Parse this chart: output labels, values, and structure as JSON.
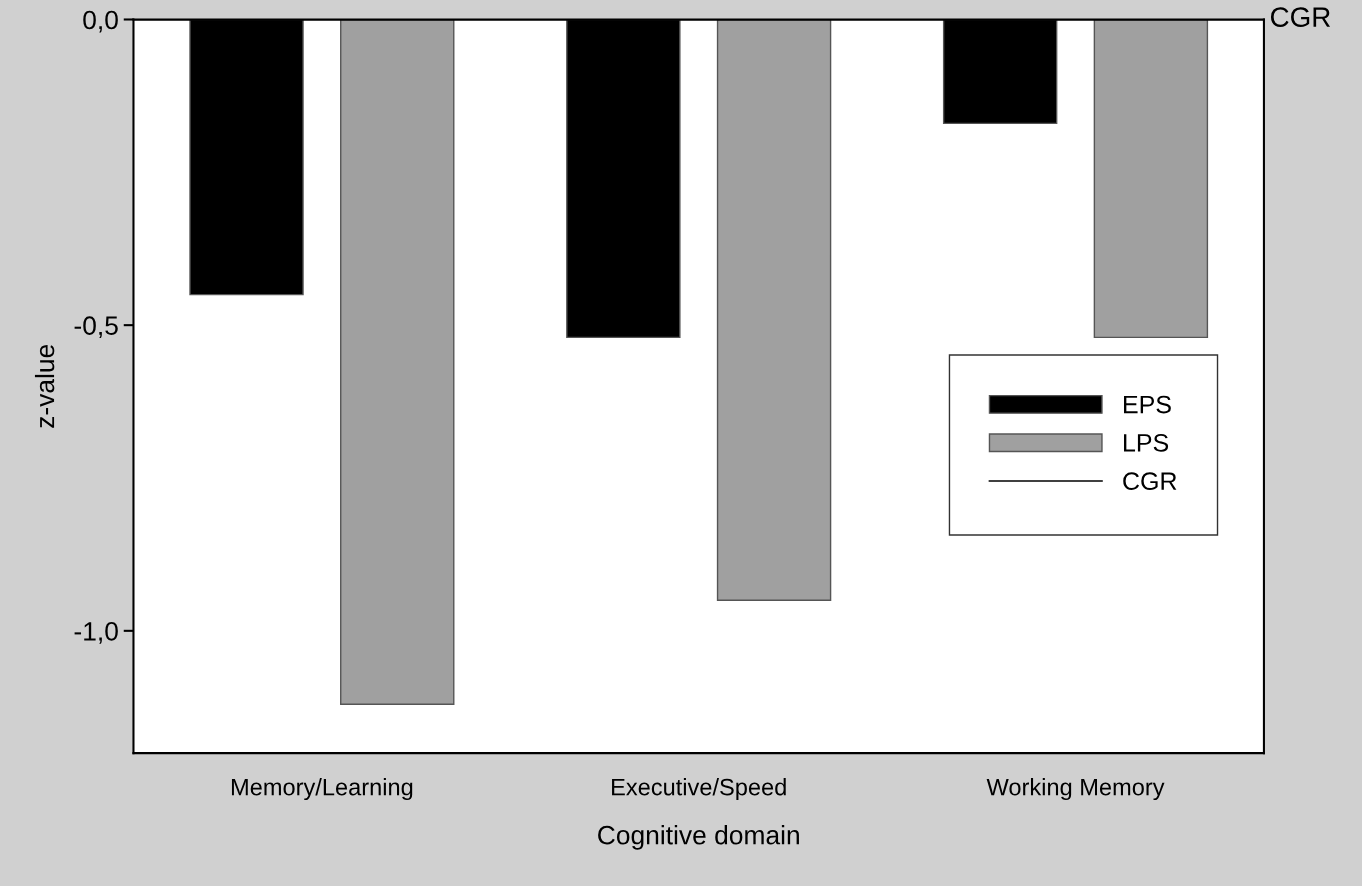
{
  "chart_data": {
    "type": "bar",
    "xlabel": "Cognitive domain",
    "ylabel": "z-value",
    "categories": [
      "Memory/Learning",
      "Executive/Speed",
      "Working Memory"
    ],
    "series": [
      {
        "name": "EPS",
        "color": "#000000",
        "values": [
          -0.45,
          -0.52,
          -0.17
        ]
      },
      {
        "name": "LPS",
        "color": "#a0a0a0",
        "values": [
          -1.12,
          -0.95,
          -0.52
        ]
      }
    ],
    "ylim": [
      -1.2,
      0
    ],
    "yticks": [
      {
        "value": 0,
        "label": "0,0"
      },
      {
        "value": -0.5,
        "label": "-0,5"
      },
      {
        "value": -1.0,
        "label": "-1,0"
      }
    ],
    "ref_lines": [
      {
        "axis": "y",
        "value": 0,
        "label": "CGR",
        "color": "#000000"
      }
    ],
    "legend": "right",
    "grid": false
  }
}
